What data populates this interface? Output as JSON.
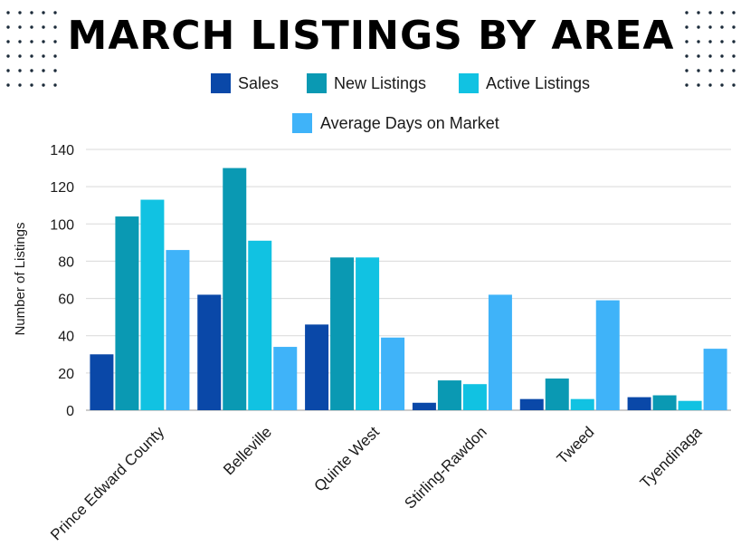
{
  "chart_data": {
    "type": "bar",
    "title": "MARCH LISTINGS BY AREA",
    "ylabel": "Number of Listings",
    "xlabel": "",
    "categories": [
      "Prince Edward County",
      "Belleville",
      "Quinte West",
      "Stirling-Rawdon",
      "Tweed",
      "Tyendinaga"
    ],
    "series": [
      {
        "name": "Sales",
        "color": "#0a48a8",
        "values": [
          30,
          62,
          46,
          4,
          6,
          7
        ]
      },
      {
        "name": "New Listings",
        "color": "#0a99b3",
        "values": [
          104,
          130,
          82,
          16,
          17,
          8
        ]
      },
      {
        "name": "Active Listings",
        "color": "#11c2e2",
        "values": [
          113,
          91,
          82,
          14,
          6,
          5
        ]
      },
      {
        "name": "Average Days on Market",
        "color": "#3fb3f9",
        "values": [
          86,
          34,
          39,
          62,
          59,
          33
        ]
      }
    ],
    "ylim": [
      0,
      140
    ],
    "yticks": [
      0,
      20,
      40,
      60,
      80,
      100,
      120,
      140
    ],
    "grid": true,
    "legend_position": "top"
  },
  "decor": {
    "dot_color": "#1c2b3a"
  }
}
